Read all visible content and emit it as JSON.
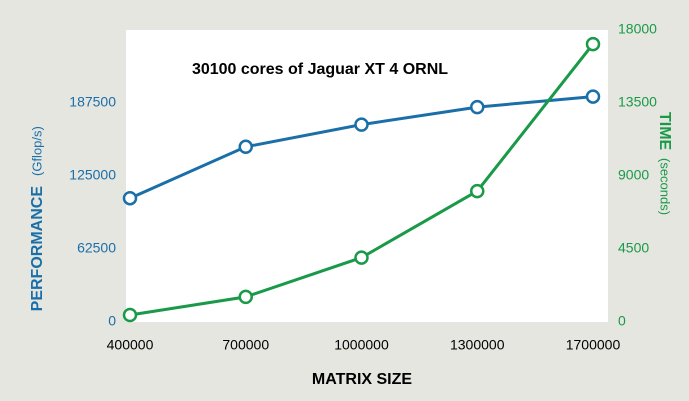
{
  "chart_data": {
    "type": "line",
    "title": "30100 cores of Jaguar XT 4 ORNL",
    "x_label": "MATRIX SIZE",
    "y_label": "PERFORMANCE",
    "y_label_unit": "(Gflop/s)",
    "y2_label": "TIME",
    "y2_label_unit": "(seconds)",
    "categories": [
      "400000",
      "700000",
      "1000000",
      "1300000",
      "1700000"
    ],
    "series": [
      {
        "name": "PERFORMANCE",
        "color": "#1a6fa8",
        "values": [
          106000,
          150000,
          169000,
          184000,
          193000
        ]
      },
      {
        "name": "TIME",
        "color": "#1a9a48",
        "axis": "y2",
        "values": [
          430,
          1550,
          3970,
          8070,
          17130
        ]
      }
    ],
    "ylim": [
      0,
      250000
    ],
    "yticks": [
      0,
      62500,
      125000,
      187500
    ],
    "y2lim": [
      0,
      18000
    ],
    "y2ticks": [
      0,
      4500,
      9000,
      13500,
      18000
    ]
  }
}
